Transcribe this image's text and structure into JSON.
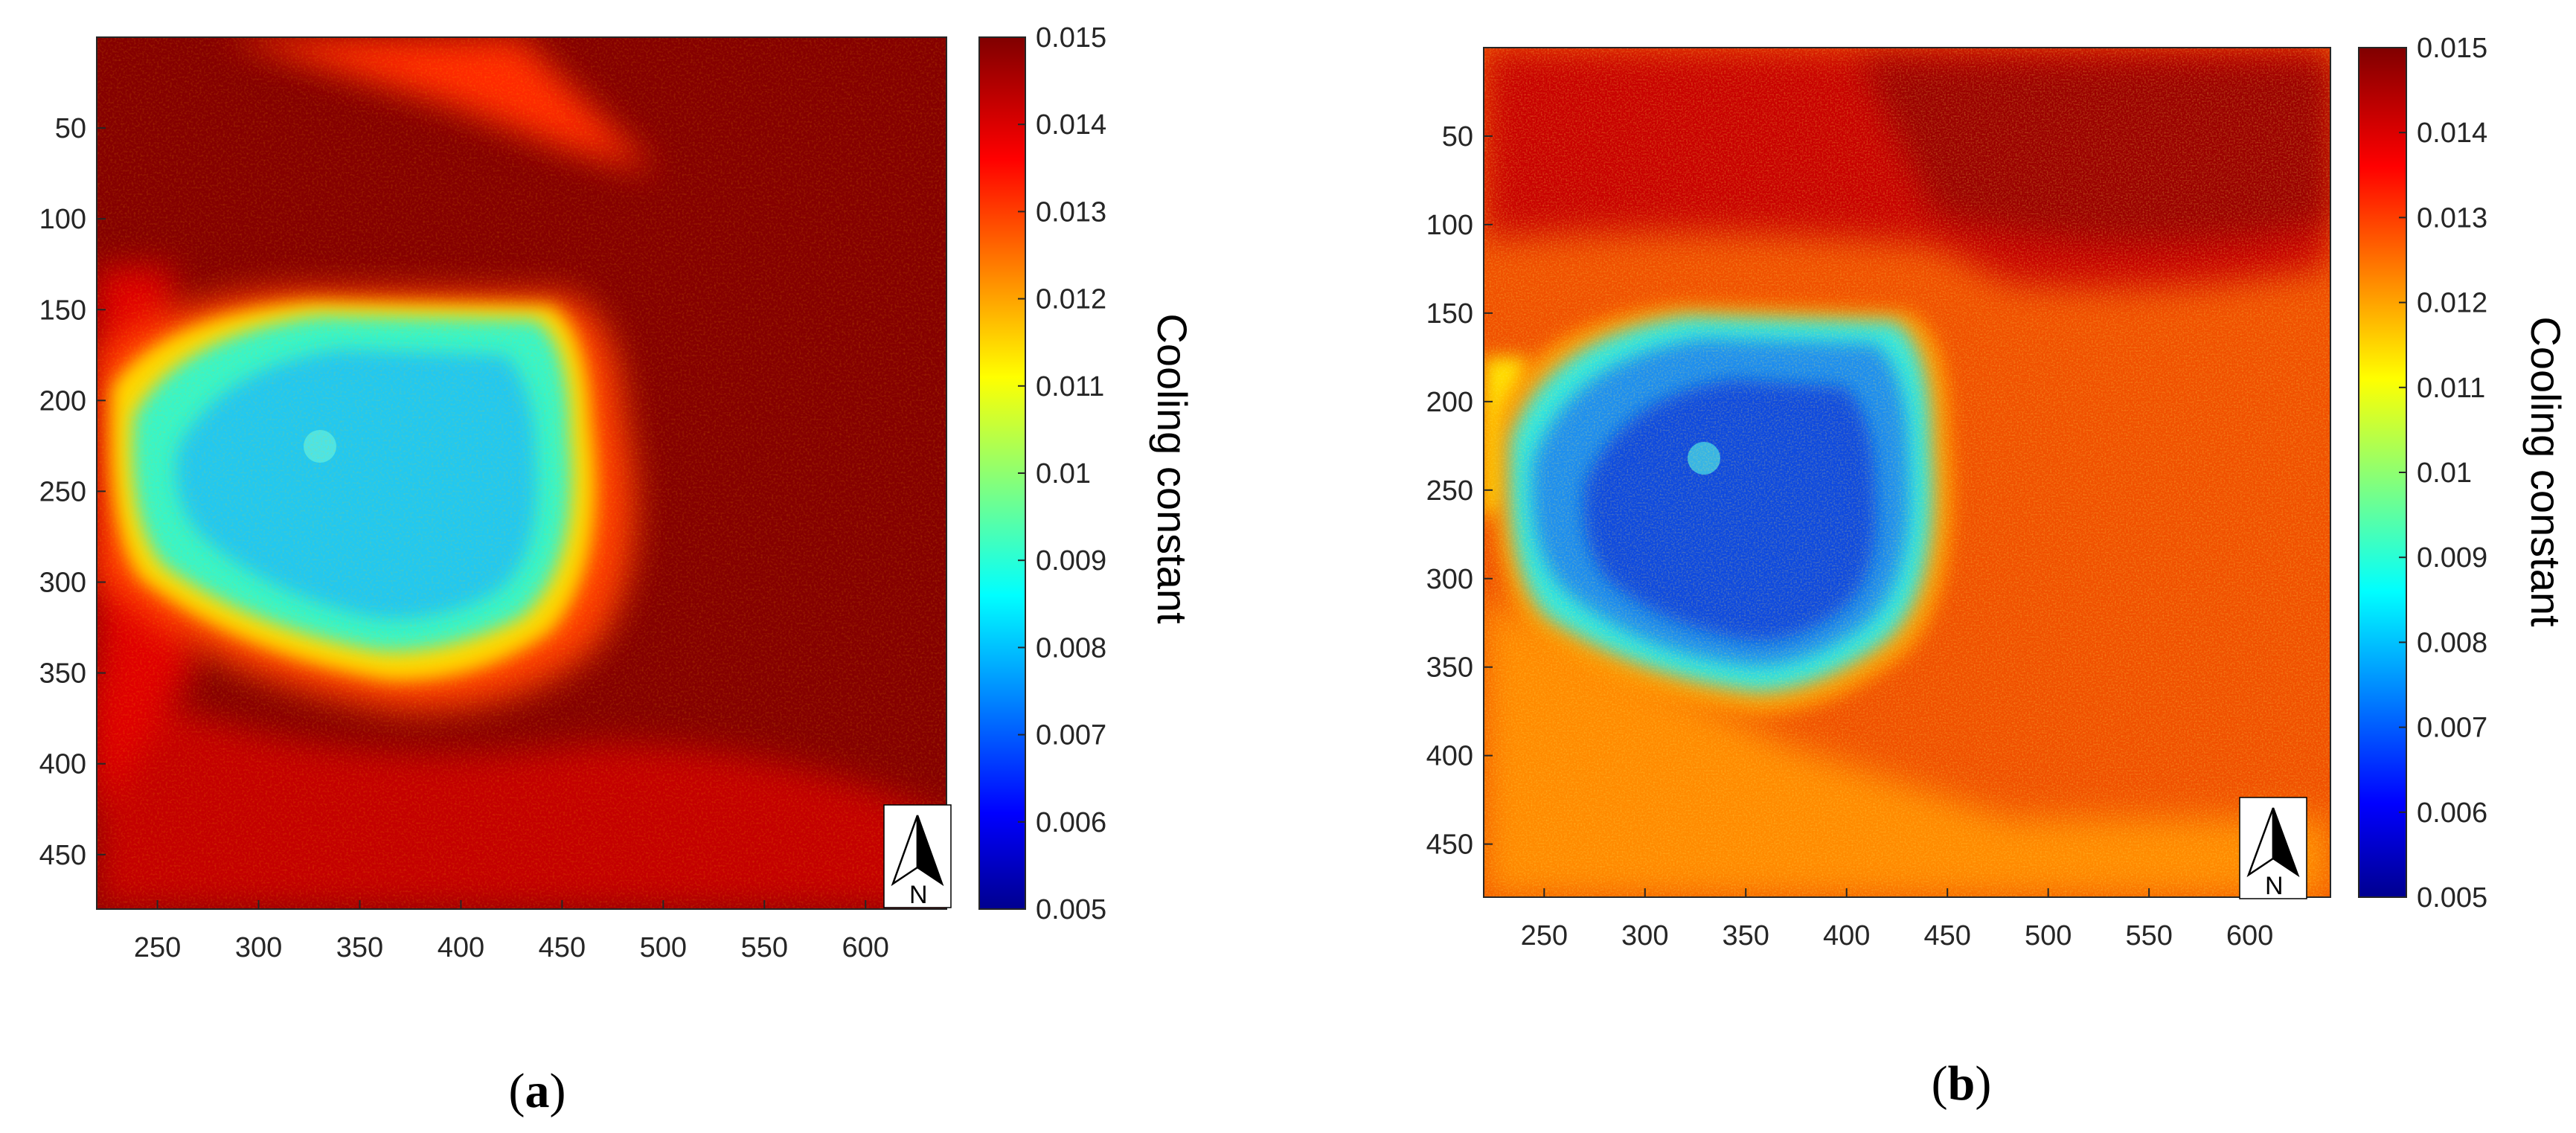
{
  "chart_data": [
    {
      "type": "heatmap",
      "panel_label": "a",
      "title": "",
      "xlabel": "",
      "ylabel": "",
      "x_ticks": [
        "250",
        "300",
        "350",
        "400",
        "450",
        "500",
        "550",
        "600"
      ],
      "y_ticks": [
        "50",
        "100",
        "150",
        "200",
        "250",
        "300",
        "350",
        "400",
        "450"
      ],
      "xlim": [
        220,
        640
      ],
      "ylim": [
        480,
        0
      ],
      "colorbar": {
        "label": "Cooling constant",
        "range": [
          0.005,
          0.015
        ],
        "ticks": [
          "0.015",
          "0.014",
          "0.013",
          "0.012",
          "0.011",
          "0.01",
          "0.009",
          "0.008",
          "0.007",
          "0.006",
          "0.005"
        ],
        "colormap": "jet"
      },
      "background_value": 0.015,
      "cold_region": {
        "center_x": 340,
        "center_y": 255,
        "value_min": 0.0085,
        "rim_value": 0.012
      },
      "north_arrow": "N"
    },
    {
      "type": "heatmap",
      "panel_label": "b",
      "title": "",
      "xlabel": "",
      "ylabel": "",
      "x_ticks": [
        "250",
        "300",
        "350",
        "400",
        "450",
        "500",
        "550",
        "600"
      ],
      "y_ticks": [
        "50",
        "100",
        "150",
        "200",
        "250",
        "300",
        "350",
        "400",
        "450"
      ],
      "xlim": [
        220,
        640
      ],
      "ylim": [
        480,
        0
      ],
      "colorbar": {
        "label": "Cooling constant",
        "range": [
          0.005,
          0.015
        ],
        "ticks": [
          "0.015",
          "0.014",
          "0.013",
          "0.012",
          "0.011",
          "0.01",
          "0.009",
          "0.008",
          "0.007",
          "0.006",
          "0.005"
        ],
        "colormap": "jet"
      },
      "background_value": 0.0135,
      "cold_region": {
        "center_x": 345,
        "center_y": 260,
        "value_min": 0.0072,
        "rim_value": 0.0095
      },
      "north_arrow": "N"
    }
  ]
}
